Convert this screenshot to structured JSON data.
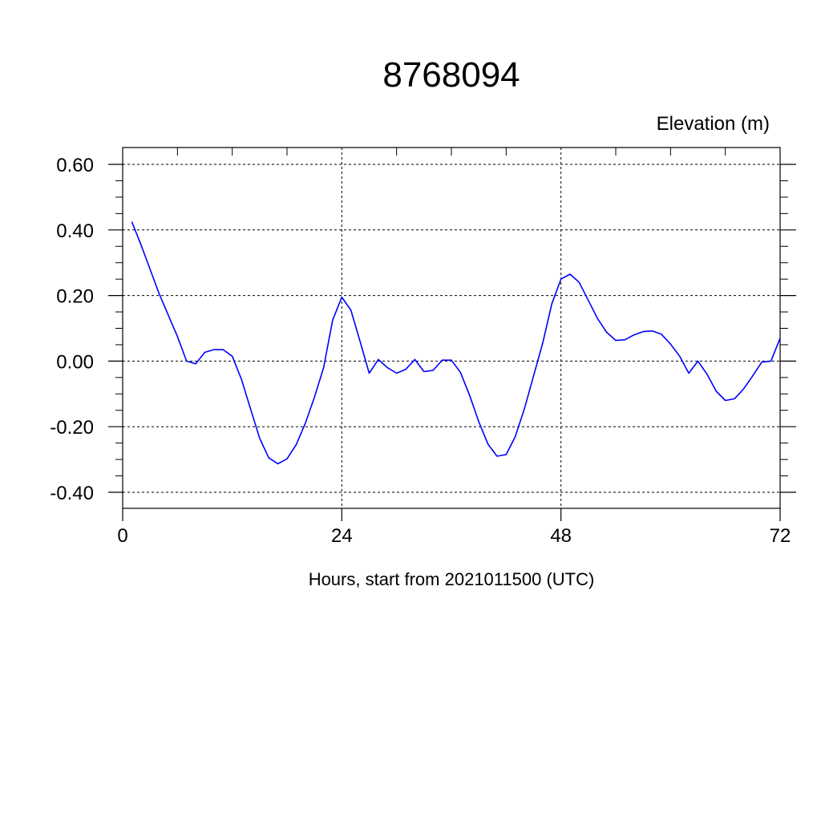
{
  "chart_data": {
    "type": "line",
    "title": "8768094",
    "ylabel": "Elevation (m)",
    "xlabel": "Hours, start from 2021011500 (UTC)",
    "xlim": [
      0,
      72
    ],
    "ylim": [
      -0.4,
      0.6
    ],
    "x_ticks": [
      0,
      24,
      48,
      72
    ],
    "x_tick_labels": [
      "0",
      "24",
      "48",
      "72"
    ],
    "y_ticks": [
      -0.4,
      -0.2,
      0.0,
      0.2,
      0.4,
      0.6
    ],
    "y_tick_labels": [
      "-0.40",
      "-0.20",
      "0.00",
      "0.20",
      "0.40",
      "0.60"
    ],
    "grid": true,
    "series": [
      {
        "color": "#0000ff",
        "x": [
          1,
          2,
          3,
          4,
          5,
          6,
          7,
          8,
          9,
          10,
          11,
          12,
          13,
          14,
          15,
          16,
          17,
          18,
          19,
          20,
          21,
          22,
          23,
          24,
          25,
          26,
          27,
          28,
          29,
          30,
          31,
          32,
          33,
          34,
          35,
          36,
          37,
          38,
          39,
          40,
          41,
          42,
          43,
          44,
          45,
          46,
          47,
          48,
          49,
          50,
          51,
          52,
          53,
          54,
          55,
          56,
          57,
          58,
          59,
          60,
          61,
          62,
          63,
          64,
          65,
          66,
          67,
          68,
          69,
          70,
          71,
          72
        ],
        "values": [
          0.425,
          0.355,
          0.28,
          0.205,
          0.14,
          0.075,
          0.0,
          -0.008,
          0.027,
          0.035,
          0.035,
          0.015,
          -0.055,
          -0.145,
          -0.235,
          -0.295,
          -0.313,
          -0.298,
          -0.255,
          -0.19,
          -0.11,
          -0.02,
          0.125,
          0.195,
          0.155,
          0.06,
          -0.037,
          0.005,
          -0.02,
          -0.037,
          -0.025,
          0.005,
          -0.032,
          -0.028,
          0.003,
          0.003,
          -0.035,
          -0.105,
          -0.185,
          -0.253,
          -0.29,
          -0.285,
          -0.23,
          -0.145,
          -0.045,
          0.055,
          0.175,
          0.25,
          0.265,
          0.24,
          0.185,
          0.13,
          0.088,
          0.063,
          0.065,
          0.08,
          0.09,
          0.092,
          0.082,
          0.052,
          0.015,
          -0.037,
          0.0,
          -0.04,
          -0.092,
          -0.12,
          -0.115,
          -0.085,
          -0.045,
          -0.003,
          0.0,
          0.07
        ]
      }
    ]
  }
}
